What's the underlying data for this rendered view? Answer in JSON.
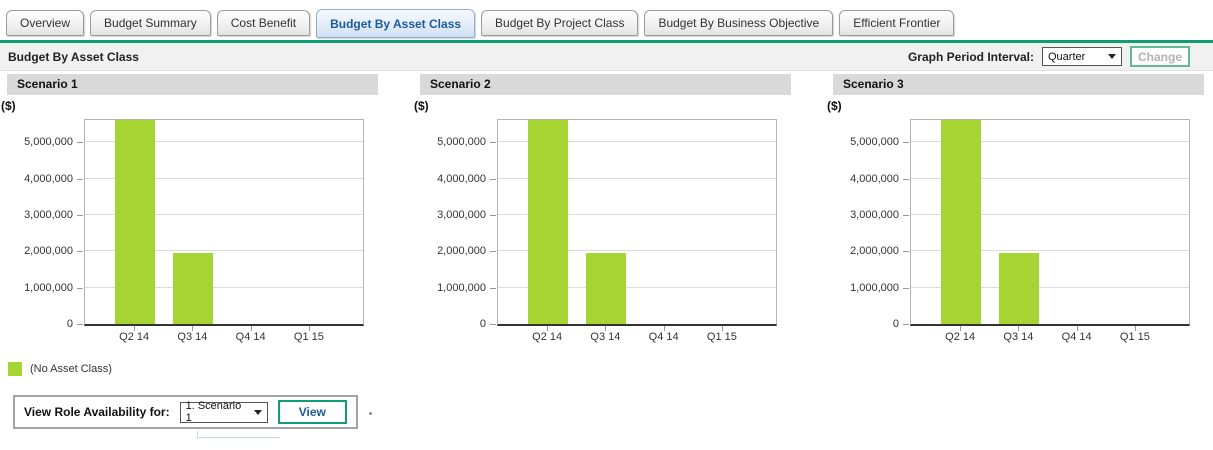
{
  "tabs": [
    {
      "label": "Overview",
      "active": false
    },
    {
      "label": "Budget Summary",
      "active": false
    },
    {
      "label": "Cost Benefit",
      "active": false
    },
    {
      "label": "Budget By Asset Class",
      "active": true
    },
    {
      "label": "Budget By Project Class",
      "active": false
    },
    {
      "label": "Budget By Business Objective",
      "active": false
    },
    {
      "label": "Efficient Frontier",
      "active": false
    }
  ],
  "toolbar": {
    "title": "Budget By Asset Class",
    "interval_label": "Graph Period Interval:",
    "interval_value": "Quarter",
    "change_label": "Change"
  },
  "chart_data": {
    "type": "bar",
    "categories": [
      "Q2 14",
      "Q3 14",
      "Q4 14",
      "Q1 15"
    ],
    "y_ticks": [
      0,
      1000000,
      2000000,
      3000000,
      4000000,
      5000000
    ],
    "y_tick_labels": [
      "0",
      "1,000,000",
      "2,000,000",
      "3,000,000",
      "4,000,000",
      "5,000,000"
    ],
    "ylabel": "($)",
    "ylim": [
      0,
      5610000
    ],
    "grid": "horizontal",
    "legend_position": "bottom-left",
    "bar_color": "#a6d432",
    "panels": [
      {
        "title": "Scenario 1",
        "values": [
          5600000,
          1950000,
          0,
          0
        ]
      },
      {
        "title": "Scenario 2",
        "values": [
          5600000,
          1950000,
          0,
          0
        ]
      },
      {
        "title": "Scenario 3",
        "values": [
          5600000,
          1950000,
          0,
          0
        ]
      }
    ],
    "note": "Q2 14 bars exceed the visible axis maximum and are clipped at the plot top"
  },
  "legend": {
    "swatch_color": "#a6d432",
    "label": "(No Asset Class)"
  },
  "role_availability": {
    "label": "View Role Availability for:",
    "selected_option": "1. Scenario 1",
    "view_label": "View"
  },
  "colors": {
    "accent_green": "#0f9d75",
    "active_tab_text": "#1b5a9e",
    "bar": "#a6d432",
    "panel_header_bg": "#d9d9d9",
    "toolbar_bg": "#f1f1f1"
  }
}
